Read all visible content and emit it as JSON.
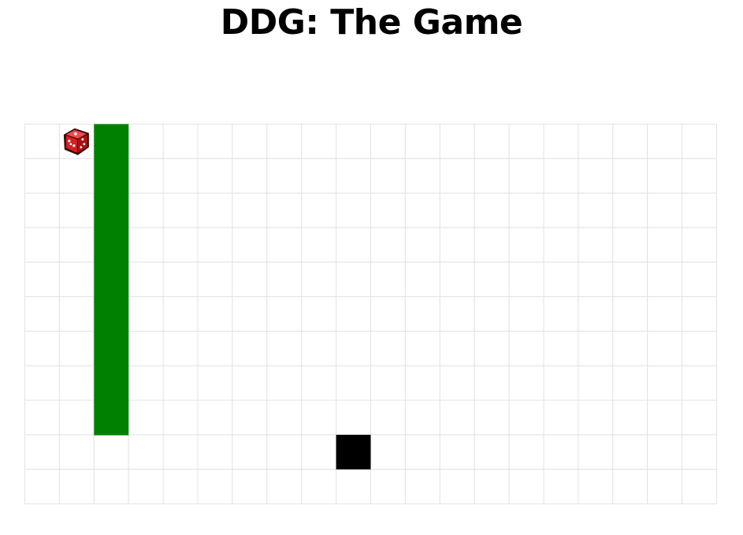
{
  "page": {
    "title": "DDG: The Game"
  },
  "board": {
    "columns": 20,
    "rows": 11,
    "grid_line_color": "#e3e3e3",
    "cell_fill_color": "#ffffff"
  },
  "snake": {
    "color": "#008000",
    "cells": [
      {
        "col": 2,
        "row": 0
      },
      {
        "col": 2,
        "row": 1
      },
      {
        "col": 2,
        "row": 2
      },
      {
        "col": 2,
        "row": 3
      },
      {
        "col": 2,
        "row": 4
      },
      {
        "col": 2,
        "row": 5
      },
      {
        "col": 2,
        "row": 6
      },
      {
        "col": 2,
        "row": 7
      },
      {
        "col": 2,
        "row": 8
      }
    ]
  },
  "food": {
    "color": "#000000",
    "cell": {
      "col": 9,
      "row": 9
    }
  },
  "dice": {
    "icon": "dice-icon",
    "color": "#d42020",
    "cell": {
      "col": 1,
      "row": 0
    }
  }
}
